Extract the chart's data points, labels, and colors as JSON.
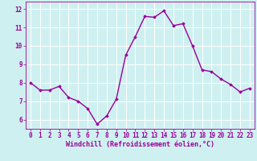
{
  "x": [
    0,
    1,
    2,
    3,
    4,
    5,
    6,
    7,
    8,
    9,
    10,
    11,
    12,
    13,
    14,
    15,
    16,
    17,
    18,
    19,
    20,
    21,
    22,
    23
  ],
  "y": [
    8.0,
    7.6,
    7.6,
    7.8,
    7.2,
    7.0,
    6.6,
    5.75,
    6.2,
    7.1,
    9.5,
    10.5,
    11.6,
    11.55,
    11.9,
    11.1,
    11.2,
    10.0,
    8.7,
    8.6,
    8.2,
    7.9,
    7.5,
    7.7
  ],
  "line_color": "#990099",
  "marker": "D",
  "marker_size": 1.8,
  "bg_color": "#cff0f0",
  "grid_color": "#ffffff",
  "xlabel": "Windchill (Refroidissement éolien,°C)",
  "xlabel_color": "#990099",
  "tick_color": "#990099",
  "ylim": [
    5.5,
    12.4
  ],
  "yticks": [
    6,
    7,
    8,
    9,
    10,
    11,
    12
  ],
  "xlim": [
    -0.5,
    23.5
  ],
  "xticks": [
    0,
    1,
    2,
    3,
    4,
    5,
    6,
    7,
    8,
    9,
    10,
    11,
    12,
    13,
    14,
    15,
    16,
    17,
    18,
    19,
    20,
    21,
    22,
    23
  ],
  "tick_fontsize": 5.5,
  "xlabel_fontsize": 6.0,
  "linewidth": 1.0
}
